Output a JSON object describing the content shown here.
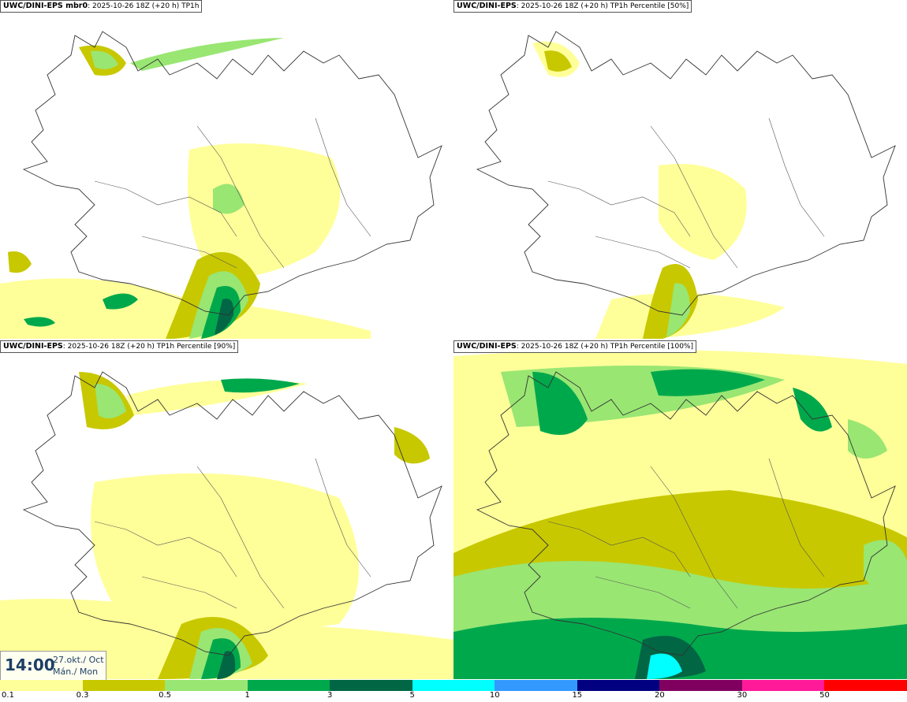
{
  "panels": [
    {
      "model": "UWC/DINI-EPS mbr0",
      "info": ": 2025-10-26 18Z (+20 h) TP1h"
    },
    {
      "model": "UWC/DINI-EPS",
      "info": ": 2025-10-26 18Z (+20 h) TP1h Percentile [50%]"
    },
    {
      "model": "UWC/DINI-EPS",
      "info": ": 2025-10-26 18Z (+20 h) TP1h Percentile [90%]"
    },
    {
      "model": "UWC/DINI-EPS",
      "info": ": 2025-10-26 18Z (+20 h) TP1h Percentile [100%]"
    }
  ],
  "time": {
    "clock": "14:00",
    "date": "27.okt./ Oct",
    "day": "Mán./ Mon"
  },
  "legend": {
    "colors": [
      "#ffff99",
      "#c8c800",
      "#99e673",
      "#00a84c",
      "#006644",
      "#00ffff",
      "#3399ff",
      "#000080",
      "#800060",
      "#ff1a99",
      "#ff0000"
    ],
    "ticks": [
      "0.1",
      "0.3",
      "0.5",
      "1",
      "3",
      "5",
      "10",
      "15",
      "20",
      "30",
      "50"
    ]
  },
  "palette": {
    "light_yellow": "#ffff99",
    "olive": "#c8c800",
    "light_green": "#99e673",
    "green": "#00a84c",
    "dark_green": "#006644",
    "cyan": "#00ffff"
  }
}
